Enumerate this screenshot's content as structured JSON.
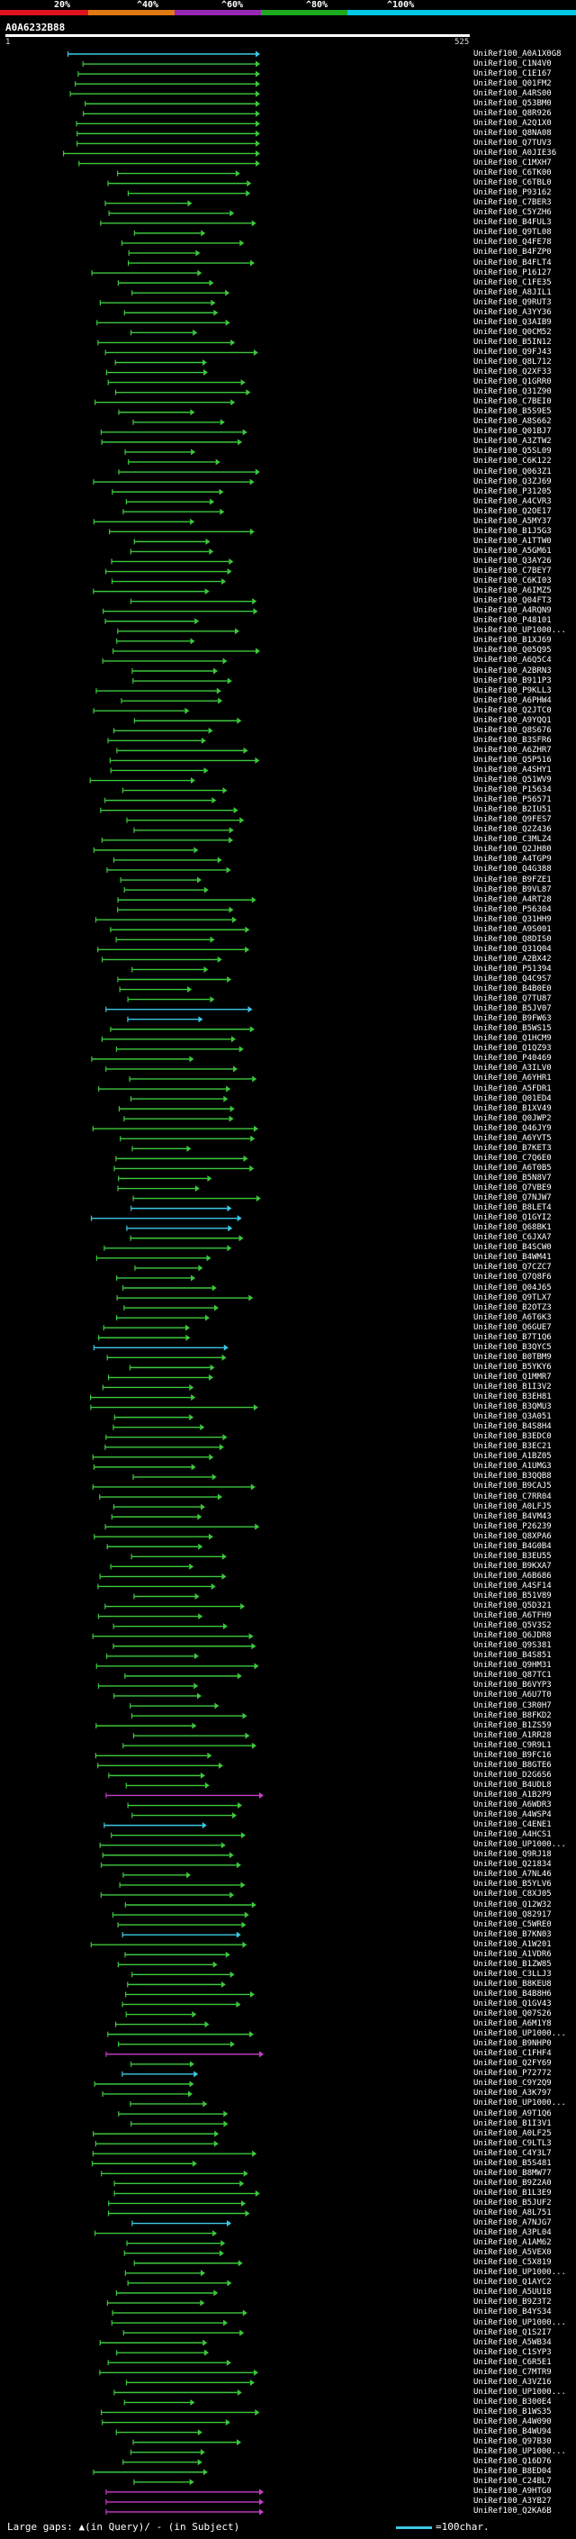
{
  "scale": {
    "labels": [
      "20%",
      "^40%",
      "^60%",
      "^80%",
      "^100%"
    ],
    "colors": [
      "#e0141e",
      "#e07814",
      "#9628b4",
      "#1eaa1e",
      "#00c8e6"
    ]
  },
  "query": {
    "id": "A0A6232B88",
    "start": "1",
    "end": "525"
  },
  "legend": {
    "text": "Large gaps: ▲(in Query)/ - (in Subject)",
    "ref": "=100char."
  },
  "colors": {
    "green": "#3cc83c",
    "cyan": "#3cc8e6",
    "magenta": "#c83cc8"
  },
  "hits": [
    "UniRef100_A0A1X0G8",
    "UniRef100_C1N4V0",
    "UniRef100_C1E167",
    "UniRef100_Q01FM2",
    "UniRef100_A4RS00",
    "UniRef100_Q53BM0",
    "UniRef100_Q8R926",
    "UniRef100_A2Q1X0",
    "UniRef100_Q8NA08",
    "UniRef100_Q7TUV3",
    "UniRef100_A0JIE36",
    "UniRef100_C1MXH7",
    "UniRef100_C6TK00",
    "UniRef100_C6TBL0",
    "UniRef100_P93162",
    "UniRef100_C7BER3",
    "UniRef100_C5YZH6",
    "UniRef100_B4FUL3",
    "UniRef100_Q9TL08",
    "UniRef100_Q4FE78",
    "UniRef100_B4FZP0",
    "UniRef100_B4FLT4",
    "UniRef100_P16127",
    "UniRef100_C1FE35",
    "UniRef100_A8JIL1",
    "UniRef100_Q9RUT3",
    "UniRef100_A3YY36",
    "UniRef100_Q3AIB9",
    "UniRef100_Q0CM52",
    "UniRef100_B5IN12",
    "UniRef100_Q9FJ43",
    "UniRef100_Q8L712",
    "UniRef100_Q2XF33",
    "UniRef100_Q1GRR0",
    "UniRef100_Q31Z90",
    "UniRef100_C7BEI0",
    "UniRef100_B5S9E5",
    "UniRef100_A8S662",
    "UniRef100_Q01BJ7",
    "UniRef100_A3ZTW2",
    "UniRef100_Q5SL09",
    "UniRef100_C6K122",
    "UniRef100_Q063Z1",
    "UniRef100_Q3ZJ69",
    "UniRef100_P31205",
    "UniRef100_A4CVR3",
    "UniRef100_Q2OE17",
    "UniRef100_A5MY37",
    "UniRef100_B1J5G3",
    "UniRef100_A1TTW0",
    "UniRef100_A5GM61",
    "UniRef100_Q3AY26",
    "UniRef100_C7BEY7",
    "UniRef100_C6KI03",
    "UniRef100_A6IMZ5",
    "UniRef100_Q04FT3",
    "UniRef100_A4RQN9",
    "UniRef100_P48101",
    "UniRef100_UP1000...",
    "UniRef100_B1XJ69",
    "UniRef100_Q05Q95",
    "UniRef100_A6Q5C4",
    "UniRef100_A2BRN3",
    "UniRef100_B911P3",
    "UniRef100_P9KLL3",
    "UniRef100_A6PHW4",
    "UniRef100_Q2JTC0",
    "UniRef100_A9YQQ1",
    "UniRef100_Q8S676",
    "UniRef100_B3SFR6",
    "UniRef100_A6ZHR7",
    "UniRef100_Q5P516",
    "UniRef100_A4SHY1",
    "UniRef100_Q51WV9",
    "UniRef100_P15634",
    "UniRef100_P56571",
    "UniRef100_B2IU51",
    "UniRef100_Q9FES7",
    "UniRef100_Q2Z436",
    "UniRef100_C3MLZ4",
    "UniRef100_Q2JH80",
    "UniRef100_A4TGP9",
    "UniRef100_Q4G388",
    "UniRef100_B9FZE1",
    "UniRef100_B9VL87",
    "UniRef100_A4RT28",
    "UniRef100_P56304",
    "UniRef100_Q31HH9",
    "UniRef100_A9S001",
    "UniRef100_Q8DIS0",
    "UniRef100_Q31Q04",
    "UniRef100_A2BX42",
    "UniRef100_P51394",
    "UniRef100_Q4C9S7",
    "UniRef100_B4B0E0",
    "UniRef100_Q7TU87",
    "UniRef100_B5JV07",
    "UniRef100_B9FW63",
    "UniRef100_B5WS15",
    "UniRef100_Q1HCM9",
    "UniRef100_Q1QZ93",
    "UniRef100_P40469",
    "UniRef100_A3ILV0",
    "UniRef100_A6YHR1",
    "UniRef100_A5FDR1",
    "UniRef100_Q01ED4",
    "UniRef100_B1XV49",
    "UniRef100_Q0JWP2",
    "UniRef100_Q46JY9",
    "UniRef100_A6YVT5",
    "UniRef100_B7KET3",
    "UniRef100_C7Q6E0",
    "UniRef100_A6T0B5",
    "UniRef100_B5N8V7",
    "UniRef100_Q7VBE9",
    "UniRef100_Q7NJW7",
    "UniRef100_B8LET4",
    "UniRef100_Q1GYI2",
    "UniRef100_Q68BK1",
    "UniRef100_C6JXA7",
    "UniRef100_B4SCW0",
    "UniRef100_B4WM41",
    "UniRef100_Q7CZC7",
    "UniRef100_Q7Q8F6",
    "UniRef100_Q04J65",
    "UniRef100_Q9TLX7",
    "UniRef100_B2OTZ3",
    "UniRef100_A6T6K3",
    "UniRef100_Q6GUE7",
    "UniRef100_B7T1Q6",
    "UniRef100_B3QYC5",
    "UniRef100_B0TBM9",
    "UniRef100_B5YKY6",
    "UniRef100_Q1MMR7",
    "UniRef100_B1I3V2",
    "UniRef100_B3EH81",
    "UniRef100_B3QMU3",
    "UniRef100_Q3A051",
    "UniRef100_B4S8H4",
    "UniRef100_B3EDC0",
    "UniRef100_B3EC21",
    "UniRef100_A1BZ05",
    "UniRef100_A1UMG3",
    "UniRef100_B3QQB8",
    "UniRef100_B9CAJ5",
    "UniRef100_C7RR04",
    "UniRef100_A0LFJ5",
    "UniRef100_B4VM43",
    "UniRef100_P26239",
    "UniRef100_Q8XPA6",
    "UniRef100_B4G0B4",
    "UniRef100_B3EU55",
    "UniRef100_B9KXA7",
    "UniRef100_A6B686",
    "UniRef100_A4SF14",
    "UniRef100_B51V89",
    "UniRef100_Q5D321",
    "UniRef100_A6TFH9",
    "UniRef100_Q5V3S2",
    "UniRef100_Q6JDR8",
    "UniRef100_Q9S381",
    "UniRef100_B4S851",
    "UniRef100_Q9HM31",
    "UniRef100_Q87TC1",
    "UniRef100_B6VYP3",
    "UniRef100_A6U7T0",
    "UniRef100_C3R0H7",
    "UniRef100_B8FKD2",
    "UniRef100_B1ZS59",
    "UniRef100_A1RR28",
    "UniRef100_C9R9L1",
    "UniRef100_B9FC16",
    "UniRef100_B8GTE6",
    "UniRef100_D2G6S6",
    "UniRef100_B4UDL8",
    "UniRef100_A1B2P9",
    "UniRef100_A6WDR3",
    "UniRef100_A4WSP4",
    "UniRef100_C4ENE1",
    "UniRef100_A4HCS1",
    "UniRef100_UP1000...",
    "UniRef100_Q9RJ18",
    "UniRef100_Q21834",
    "UniRef100_A7NL46",
    "UniRef100_B5YLV6",
    "UniRef100_C8XJ05",
    "UniRef100_Q12W32",
    "UniRef100_Q82917",
    "UniRef100_C5WRE0",
    "UniRef100_B7KN03",
    "UniRef100_A1W201",
    "UniRef100_A1VDR6",
    "UniRef100_B1ZW85",
    "UniRef100_C3LLJ3",
    "UniRef100_B8KEU8",
    "UniRef100_B4B8H6",
    "UniRef100_Q1GV43",
    "UniRef100_Q07S26",
    "UniRef100_A6M1Y8",
    "UniRef100_UP1000...",
    "UniRef100_B9NHP0",
    "UniRef100_C1FHF4",
    "UniRef100_Q2FY69",
    "UniRef100_P72772",
    "UniRef100_C9Y2Q9",
    "UniRef100_A3K797",
    "UniRef100_UP1000...",
    "UniRef100_A9T1Q6",
    "UniRef100_B1I3V1",
    "UniRef100_A0LF25",
    "UniRef100_C9LTL3",
    "UniRef100_C4Y3L7",
    "UniRef100_B5S481",
    "UniRef100_B8MW77",
    "UniRef100_B9Z2A0",
    "UniRef100_B1L3E9",
    "UniRef100_B5JUF2",
    "UniRef100_A8L751",
    "UniRef100_A7NJG7",
    "UniRef100_A3PL04",
    "UniRef100_A1AM62",
    "UniRef100_A5VEX0",
    "UniRef100_C5X819",
    "UniRef100_UP1000...",
    "UniRef100_Q1AYC2",
    "UniRef100_A5UU18",
    "UniRef100_B9Z3T2",
    "UniRef100_B4YS34",
    "UniRef100_UP1000...",
    "UniRef100_Q1S2I7",
    "UniRef100_A5WB34",
    "UniRef100_C1SYP3",
    "UniRef100_C6R5E1",
    "UniRef100_C7MTR9",
    "UniRef100_A3VZ16",
    "UniRef100_UP1000...",
    "UniRef100_B300E4",
    "UniRef100_B1WS35",
    "UniRef100_A4W090",
    "UniRef100_B4WU94",
    "UniRef100_Q97B30",
    "UniRef100_UP1000...",
    "UniRef100_Q16D76",
    "UniRef100_B8ED04",
    "UniRef100_C24BL7",
    "UniRef100_A9HTG0",
    "UniRef100_A3YB27",
    "UniRef100_Q2KA6B"
  ]
}
